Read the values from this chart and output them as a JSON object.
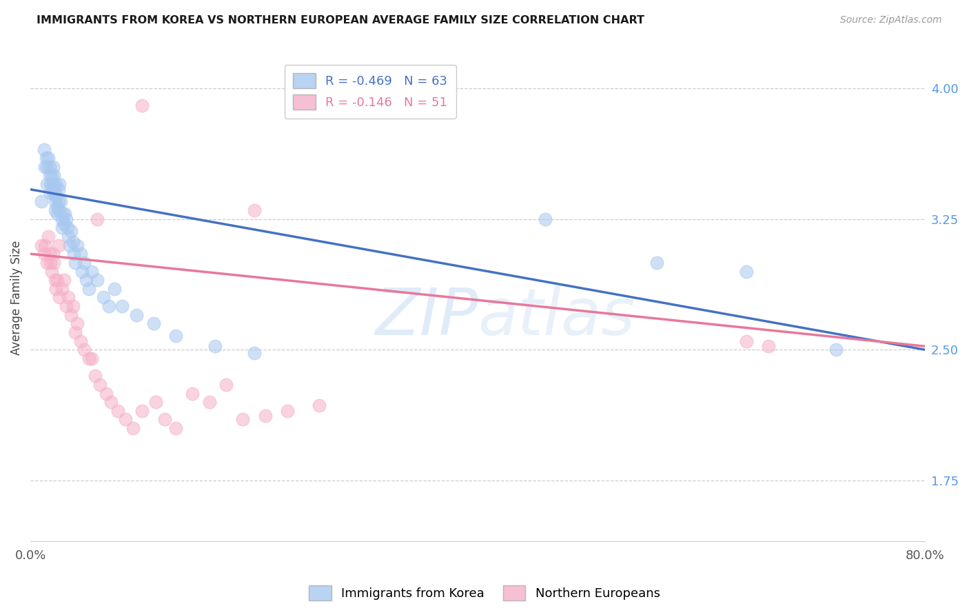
{
  "title": "IMMIGRANTS FROM KOREA VS NORTHERN EUROPEAN AVERAGE FAMILY SIZE CORRELATION CHART",
  "source": "Source: ZipAtlas.com",
  "ylabel": "Average Family Size",
  "yticks": [
    1.75,
    2.5,
    3.25,
    4.0
  ],
  "xlim": [
    0.0,
    0.8
  ],
  "ylim": [
    1.4,
    4.2
  ],
  "korea_color": "#A8C8F0",
  "northern_color": "#F5B0C8",
  "korea_line_color": "#4472C4",
  "northern_line_color": "#E8789A",
  "legend_korea_R": "-0.469",
  "legend_korea_N": "63",
  "legend_northern_R": "-0.146",
  "legend_northern_N": "51",
  "korea_x": [
    0.01,
    0.012,
    0.013,
    0.014,
    0.015,
    0.015,
    0.016,
    0.017,
    0.017,
    0.018,
    0.018,
    0.019,
    0.019,
    0.02,
    0.02,
    0.021,
    0.021,
    0.022,
    0.022,
    0.022,
    0.023,
    0.023,
    0.024,
    0.024,
    0.025,
    0.025,
    0.026,
    0.026,
    0.027,
    0.028,
    0.028,
    0.029,
    0.03,
    0.031,
    0.032,
    0.033,
    0.034,
    0.035,
    0.036,
    0.038,
    0.039,
    0.04,
    0.042,
    0.045,
    0.046,
    0.048,
    0.05,
    0.052,
    0.055,
    0.06,
    0.065,
    0.07,
    0.075,
    0.082,
    0.095,
    0.11,
    0.13,
    0.165,
    0.2,
    0.46,
    0.56,
    0.64,
    0.72
  ],
  "korea_y": [
    3.35,
    3.65,
    3.55,
    3.6,
    3.55,
    3.45,
    3.6,
    3.55,
    3.5,
    3.45,
    3.4,
    3.5,
    3.45,
    3.55,
    3.4,
    3.5,
    3.45,
    3.4,
    3.35,
    3.3,
    3.45,
    3.38,
    3.32,
    3.28,
    3.42,
    3.35,
    3.45,
    3.3,
    3.35,
    3.25,
    3.2,
    3.28,
    3.22,
    3.28,
    3.25,
    3.2,
    3.15,
    3.1,
    3.18,
    3.12,
    3.05,
    3.0,
    3.1,
    3.05,
    2.95,
    3.0,
    2.9,
    2.85,
    2.95,
    2.9,
    2.8,
    2.75,
    2.85,
    2.75,
    2.7,
    2.65,
    2.58,
    2.52,
    2.48,
    3.25,
    3.0,
    2.95,
    2.5
  ],
  "northern_x": [
    0.01,
    0.012,
    0.013,
    0.015,
    0.016,
    0.017,
    0.018,
    0.019,
    0.02,
    0.021,
    0.022,
    0.023,
    0.024,
    0.025,
    0.026,
    0.028,
    0.03,
    0.032,
    0.034,
    0.036,
    0.038,
    0.04,
    0.042,
    0.045,
    0.048,
    0.052,
    0.055,
    0.058,
    0.062,
    0.068,
    0.072,
    0.078,
    0.085,
    0.092,
    0.1,
    0.112,
    0.12,
    0.13,
    0.145,
    0.16,
    0.175,
    0.19,
    0.21,
    0.23,
    0.258,
    0.27,
    0.2,
    0.1,
    0.06,
    0.64,
    0.66
  ],
  "northern_y": [
    3.1,
    3.05,
    3.1,
    3.0,
    3.15,
    3.05,
    3.0,
    2.95,
    3.05,
    3.0,
    2.9,
    2.85,
    2.9,
    3.1,
    2.8,
    2.85,
    2.9,
    2.75,
    2.8,
    2.7,
    2.75,
    2.6,
    2.65,
    2.55,
    2.5,
    2.45,
    2.45,
    2.35,
    2.3,
    2.25,
    2.2,
    2.15,
    2.1,
    2.05,
    2.15,
    2.2,
    2.1,
    2.05,
    2.25,
    2.2,
    2.3,
    2.1,
    2.12,
    2.15,
    2.18,
    3.9,
    3.3,
    3.9,
    3.25,
    2.55,
    2.52
  ],
  "korea_line_x0": 0.0,
  "korea_line_y0": 3.42,
  "korea_line_x1": 0.8,
  "korea_line_y1": 2.5,
  "northern_line_x0": 0.0,
  "northern_line_y0": 3.05,
  "northern_line_x1": 0.8,
  "northern_line_y1": 2.52
}
